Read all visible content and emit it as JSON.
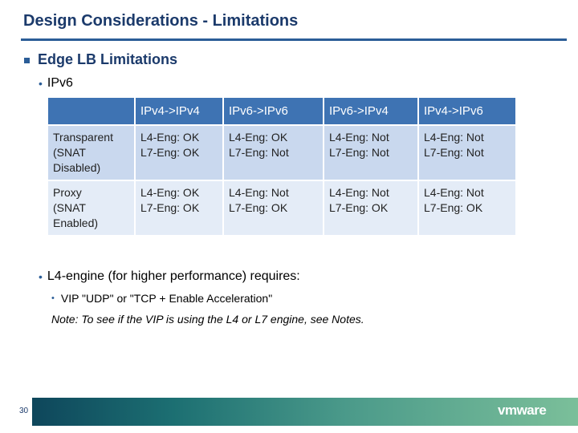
{
  "slide": {
    "title": "Design Considerations - Limitations",
    "bullet1": "Edge LB Limitations",
    "bullet2": "IPv6",
    "bullet3": "L4-engine (for higher performance) requires:",
    "sub_bullet": "VIP \"UDP\" or \"TCP + Enable Acceleration\"",
    "note": "Note: To see if the VIP is using the L4 or L7 engine, see Notes.",
    "page_number": "30",
    "logo_text": "vmware"
  },
  "table": {
    "headers": [
      "",
      "IPv4->IPv4",
      "IPv6->IPv6",
      "IPv6->IPv4",
      "IPv4->IPv6"
    ],
    "rows": [
      {
        "label": [
          "Transparent",
          "(SNAT",
          "Disabled)"
        ],
        "cells": [
          [
            "L4-Eng: OK",
            "L7-Eng: OK"
          ],
          [
            "L4-Eng: OK",
            "L7-Eng: Not"
          ],
          [
            "L4-Eng: Not",
            "L7-Eng: Not"
          ],
          [
            "L4-Eng: Not",
            "L7-Eng: Not"
          ]
        ]
      },
      {
        "label": [
          "Proxy",
          "(SNAT",
          "Enabled)"
        ],
        "cells": [
          [
            "L4-Eng: OK",
            "L7-Eng: OK"
          ],
          [
            "L4-Eng: Not",
            "L7-Eng: OK"
          ],
          [
            "L4-Eng: Not",
            "L7-Eng: OK"
          ],
          [
            "L4-Eng: Not",
            "L7-Eng: OK"
          ]
        ]
      }
    ]
  },
  "colors": {
    "title": "#1b3a6b",
    "accent": "#2b5d97",
    "header_bg": "#3e73b3",
    "row_bg": "#c9d8ee",
    "row_alt_bg": "#e4ecf7"
  }
}
